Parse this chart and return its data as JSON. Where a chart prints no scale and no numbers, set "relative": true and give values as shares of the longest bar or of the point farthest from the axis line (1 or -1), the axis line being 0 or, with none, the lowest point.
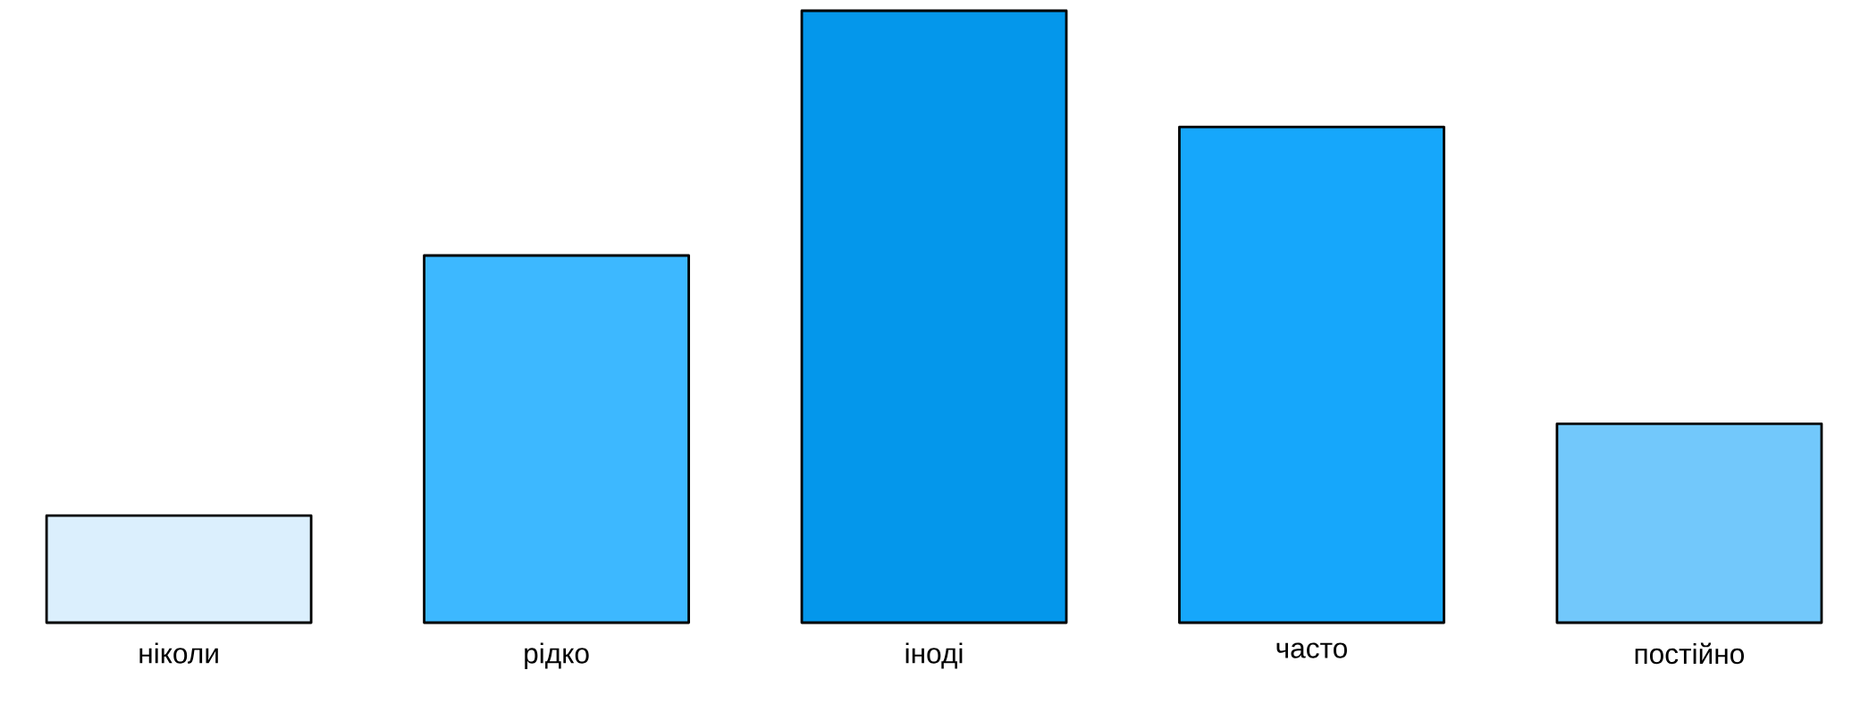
{
  "chart_data": {
    "type": "bar",
    "relative": true,
    "categories": [
      "ніколи",
      "рідко",
      "іноді",
      "часто",
      "постійно"
    ],
    "values": [
      0.175,
      0.6,
      1,
      0.81,
      0.325
    ],
    "colors": [
      "#dbeffd",
      "#3db8ff",
      "#0497eb",
      "#16a7fb",
      "#72c8fb"
    ]
  }
}
